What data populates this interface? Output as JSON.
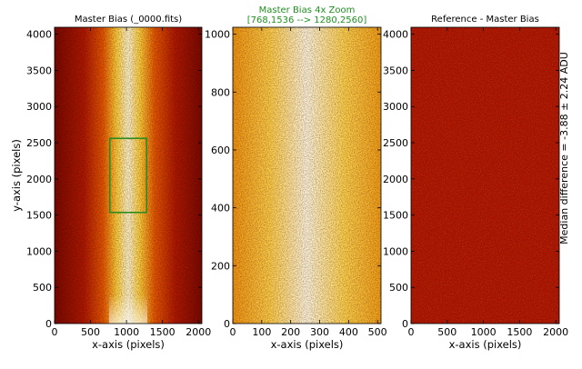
{
  "chart_data": [
    {
      "type": "heatmap",
      "panel": "left",
      "title": "Master Bias (_0000.fits)",
      "xlabel": "x-axis (pixels)",
      "ylabel": "y-axis (pixels)",
      "xlim": [
        0,
        2048
      ],
      "ylim": [
        0,
        4096
      ],
      "xticks": [
        0,
        500,
        1000,
        1500,
        2000
      ],
      "yticks": [
        0,
        500,
        1000,
        1500,
        2000,
        2500,
        3000,
        3500,
        4000
      ],
      "colormap": "hot",
      "zoom_box": {
        "x": [
          768,
          1280
        ],
        "y": [
          1536,
          2560
        ],
        "color": "#2e8b1e"
      }
    },
    {
      "type": "heatmap",
      "panel": "middle",
      "title": "Master Bias 4x Zoom",
      "subtitle": "[768,1536 --> 1280,2560]",
      "title_color": "#1f8f1f",
      "xlabel": "x-axis (pixels)",
      "ylabel": "",
      "xlim": [
        0,
        512
      ],
      "ylim": [
        0,
        1024
      ],
      "xticks": [
        0,
        100,
        200,
        300,
        400,
        500
      ],
      "yticks": [
        0,
        200,
        400,
        600,
        800,
        1000
      ],
      "colormap": "hot"
    },
    {
      "type": "heatmap",
      "panel": "right",
      "title": "Reference - Master Bias",
      "xlabel": "x-axis (pixels)",
      "ylabel": "",
      "side_label": "Median difference = -3.88 ± 2.24 ADU",
      "xlim": [
        0,
        2048
      ],
      "ylim": [
        0,
        4096
      ],
      "xticks": [
        0,
        500,
        1000,
        1500,
        2000
      ],
      "yticks": [
        0,
        500,
        1000,
        1500,
        2000,
        2500,
        3000,
        3500,
        4000
      ],
      "colormap": "hot"
    }
  ]
}
